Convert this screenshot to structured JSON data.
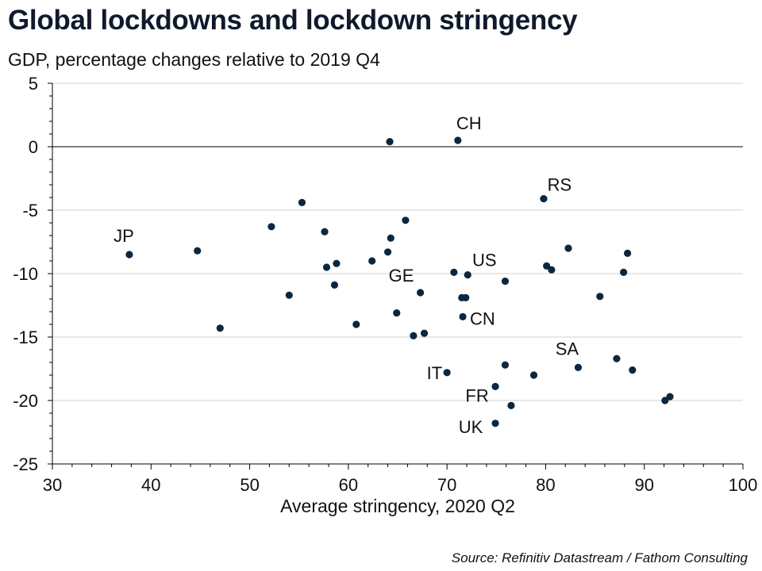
{
  "title": "Global lockdowns and lockdown stringency",
  "subtitle": "GDP, percentage changes relative to 2019 Q4",
  "source": "Source: Refinitiv Datastream / Fathom Consulting",
  "colors": {
    "point": "#0b2740",
    "grid": "#d0d0d0",
    "axis": "#000000"
  },
  "chart_data": {
    "type": "scatter",
    "title": "Global lockdowns and lockdown stringency",
    "subtitle": "GDP, percentage changes relative to 2019 Q4",
    "xlabel": "Average stringency, 2020 Q2",
    "ylabel": "",
    "xlim": [
      30,
      100
    ],
    "ylim": [
      -25,
      5
    ],
    "xticks": [
      30,
      40,
      50,
      60,
      70,
      80,
      90,
      100
    ],
    "yticks": [
      -25,
      -20,
      -15,
      -10,
      -5,
      0,
      5
    ],
    "grid": true,
    "points": [
      {
        "x": 37.8,
        "y": -8.5,
        "label": "JP"
      },
      {
        "x": 44.7,
        "y": -8.2,
        "label": ""
      },
      {
        "x": 47.0,
        "y": -14.3,
        "label": ""
      },
      {
        "x": 52.2,
        "y": -6.3,
        "label": ""
      },
      {
        "x": 54.0,
        "y": -11.7,
        "label": ""
      },
      {
        "x": 55.3,
        "y": -4.4,
        "label": ""
      },
      {
        "x": 57.6,
        "y": -6.7,
        "label": ""
      },
      {
        "x": 57.8,
        "y": -9.5,
        "label": ""
      },
      {
        "x": 58.6,
        "y": -10.9,
        "label": ""
      },
      {
        "x": 58.8,
        "y": -9.2,
        "label": ""
      },
      {
        "x": 60.8,
        "y": -14.0,
        "label": ""
      },
      {
        "x": 62.4,
        "y": -9.0,
        "label": ""
      },
      {
        "x": 64.0,
        "y": -8.3,
        "label": ""
      },
      {
        "x": 64.2,
        "y": 0.4,
        "label": ""
      },
      {
        "x": 64.3,
        "y": -7.2,
        "label": ""
      },
      {
        "x": 64.9,
        "y": -13.1,
        "label": ""
      },
      {
        "x": 65.8,
        "y": -5.8,
        "label": ""
      },
      {
        "x": 66.6,
        "y": -14.9,
        "label": ""
      },
      {
        "x": 67.3,
        "y": -11.5,
        "label": "GE"
      },
      {
        "x": 67.7,
        "y": -14.7,
        "label": ""
      },
      {
        "x": 70.0,
        "y": -17.8,
        "label": "IT"
      },
      {
        "x": 70.7,
        "y": -9.9,
        "label": ""
      },
      {
        "x": 71.1,
        "y": 0.5,
        "label": "CH"
      },
      {
        "x": 71.5,
        "y": -11.9,
        "label": ""
      },
      {
        "x": 71.6,
        "y": -13.4,
        "label": "CN"
      },
      {
        "x": 71.9,
        "y": -11.9,
        "label": ""
      },
      {
        "x": 72.1,
        "y": -10.1,
        "label": "US"
      },
      {
        "x": 74.9,
        "y": -18.9,
        "label": "FR"
      },
      {
        "x": 74.9,
        "y": -21.8,
        "label": "UK"
      },
      {
        "x": 75.9,
        "y": -10.6,
        "label": ""
      },
      {
        "x": 75.9,
        "y": -17.2,
        "label": ""
      },
      {
        "x": 76.5,
        "y": -20.4,
        "label": ""
      },
      {
        "x": 78.8,
        "y": -18.0,
        "label": ""
      },
      {
        "x": 79.8,
        "y": -4.1,
        "label": "RS"
      },
      {
        "x": 80.1,
        "y": -9.4,
        "label": ""
      },
      {
        "x": 80.6,
        "y": -9.7,
        "label": ""
      },
      {
        "x": 82.3,
        "y": -8.0,
        "label": ""
      },
      {
        "x": 83.3,
        "y": -17.4,
        "label": "SA"
      },
      {
        "x": 85.5,
        "y": -11.8,
        "label": ""
      },
      {
        "x": 87.2,
        "y": -16.7,
        "label": ""
      },
      {
        "x": 87.9,
        "y": -9.9,
        "label": ""
      },
      {
        "x": 88.3,
        "y": -8.4,
        "label": ""
      },
      {
        "x": 88.8,
        "y": -17.6,
        "label": ""
      },
      {
        "x": 92.1,
        "y": -20.0,
        "label": ""
      },
      {
        "x": 92.6,
        "y": -19.7,
        "label": ""
      }
    ]
  }
}
